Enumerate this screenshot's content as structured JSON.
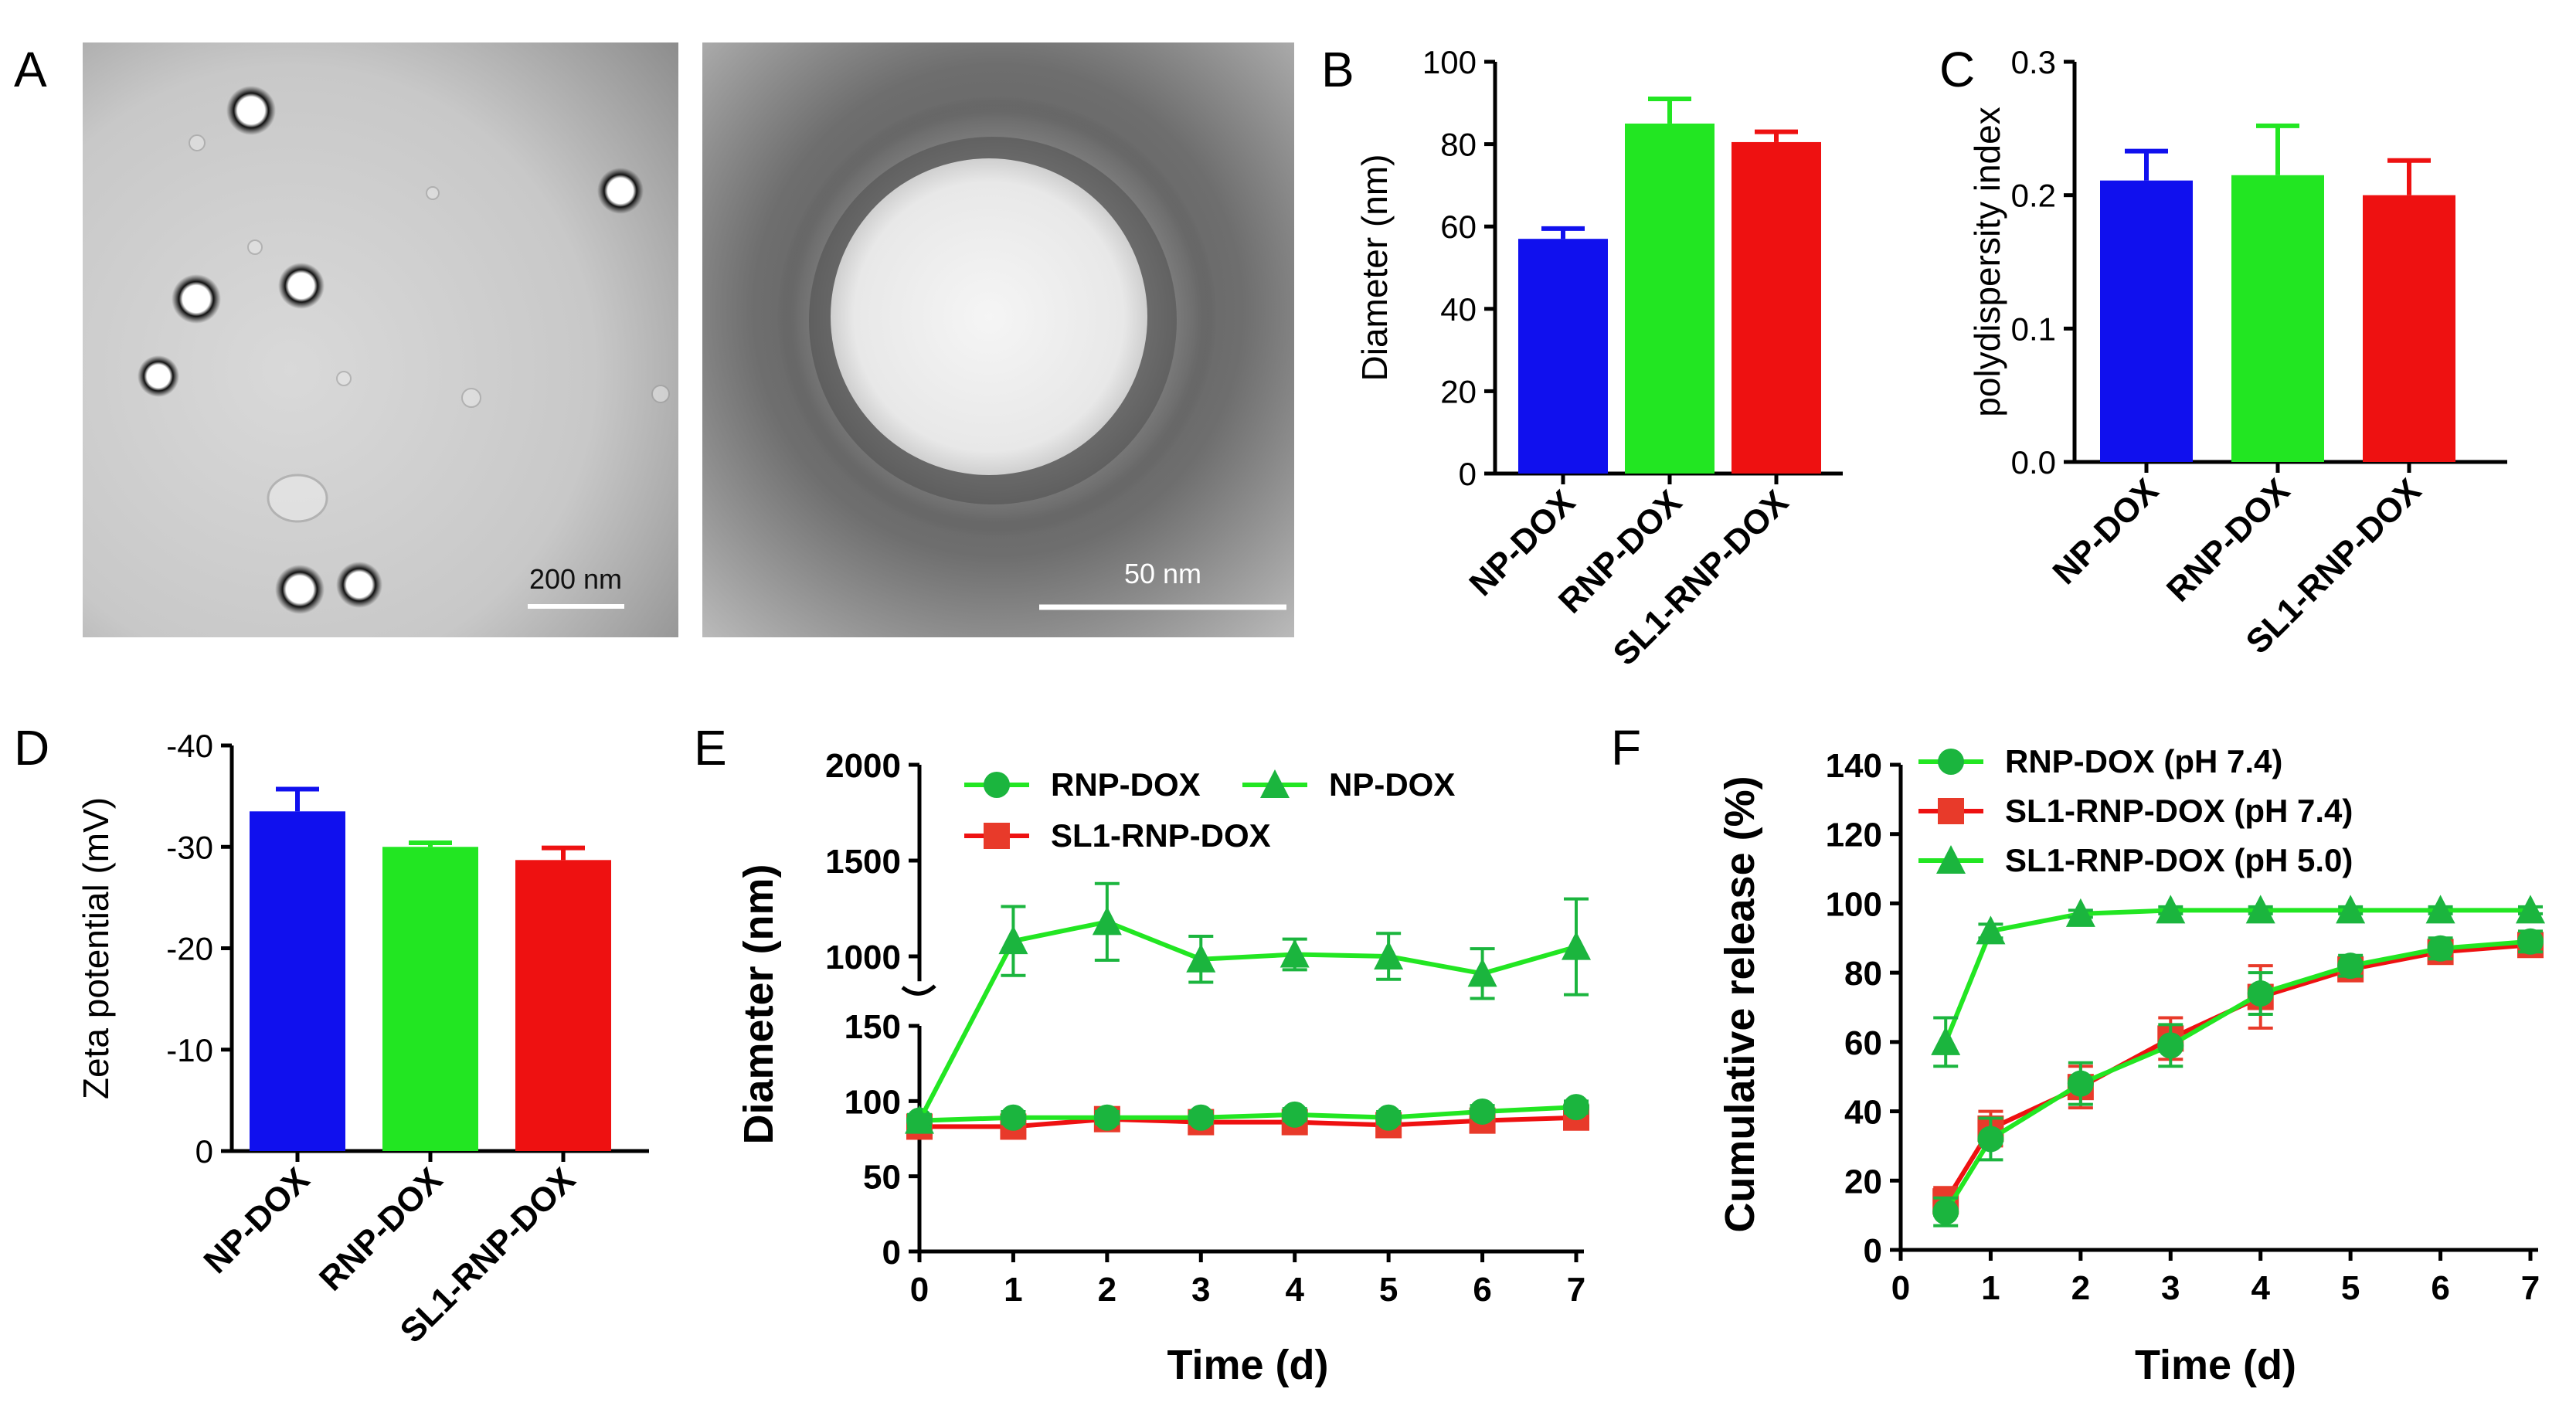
{
  "panel_labels": {
    "A": "A",
    "B": "B",
    "C": "C",
    "D": "D",
    "E": "E",
    "F": "F"
  },
  "tem_images": {
    "left_scale": "200 nm",
    "right_scale": "50 nm"
  },
  "colors": {
    "blue": "#1010ee",
    "green": "#22e622",
    "red": "#ee1111",
    "dark_green": "#1bb53e",
    "marker_red": "#e83a2a"
  },
  "chart_data": [
    {
      "id": "B",
      "type": "bar",
      "ylabel": "Diameter (nm)",
      "ylim": [
        0,
        100
      ],
      "yticks": [
        "0",
        "20",
        "40",
        "60",
        "80",
        "100"
      ],
      "categories": [
        "NP-DOX",
        "RNP-DOX",
        "SL1-RNP-DOX"
      ],
      "values": [
        57,
        85,
        80.5
      ],
      "errors": [
        2.5,
        6,
        2.5
      ],
      "colors": [
        "blue",
        "green",
        "red"
      ]
    },
    {
      "id": "C",
      "type": "bar",
      "ylabel": "polydispersity index",
      "ylim": [
        0,
        0.3
      ],
      "yticks": [
        "0.0",
        "0.1",
        "0.2",
        "0.3"
      ],
      "categories": [
        "NP-DOX",
        "RNP-DOX",
        "SL1-RNP-DOX"
      ],
      "values": [
        0.211,
        0.215,
        0.2
      ],
      "errors": [
        0.022,
        0.037,
        0.026
      ],
      "colors": [
        "blue",
        "green",
        "red"
      ]
    },
    {
      "id": "D",
      "type": "bar",
      "ylabel": "Zeta potential (mV)",
      "ylim": [
        0,
        -40
      ],
      "yticks": [
        "0",
        "-10",
        "-20",
        "-30",
        "-40"
      ],
      "categories": [
        "NP-DOX",
        "RNP-DOX",
        "SL1-RNP-DOX"
      ],
      "values": [
        -33.5,
        -30,
        -28.7
      ],
      "errors": [
        2.2,
        0.4,
        1.2
      ],
      "colors": [
        "blue",
        "green",
        "red"
      ]
    },
    {
      "id": "E",
      "type": "line",
      "xlabel": "Time (d)",
      "ylabel": "Diameter (nm)",
      "broken_axis": true,
      "ylim_lower": [
        0,
        150
      ],
      "yticks_lower": [
        "0",
        "50",
        "100",
        "150"
      ],
      "ylim_upper": [
        750,
        2000
      ],
      "yticks_upper": [
        "1000",
        "1500",
        "2000"
      ],
      "x": [
        0,
        1,
        2,
        3,
        4,
        5,
        6,
        7
      ],
      "xticks": [
        "0",
        "1",
        "2",
        "3",
        "4",
        "5",
        "6",
        "7"
      ],
      "series": [
        {
          "name": "RNP-DOX",
          "marker": "circle",
          "color": "green",
          "values": [
            87,
            89,
            89,
            89,
            91,
            89,
            93,
            96
          ],
          "errors": [
            4,
            4,
            4,
            4,
            4,
            4,
            4,
            4
          ]
        },
        {
          "name": "SL1-RNP-DOX",
          "marker": "square",
          "color": "red",
          "values": [
            83,
            83,
            88,
            86,
            86,
            84,
            87,
            89
          ],
          "errors": [
            5,
            5,
            5,
            5,
            5,
            5,
            5,
            5
          ]
        },
        {
          "name": "NP-DOX",
          "marker": "triangle",
          "color": "green",
          "values": [
            87,
            1080,
            1180,
            985,
            1010,
            1000,
            910,
            1050
          ],
          "errors": [
            4,
            180,
            200,
            120,
            80,
            120,
            130,
            250
          ]
        }
      ],
      "legend_order": [
        "RNP-DOX",
        "NP-DOX",
        "SL1-RNP-DOX"
      ]
    },
    {
      "id": "F",
      "type": "line",
      "xlabel": "Time (d)",
      "ylabel": "Cumulative release (%)",
      "ylim": [
        0,
        140
      ],
      "yticks": [
        "0",
        "20",
        "40",
        "60",
        "80",
        "100",
        "120",
        "140"
      ],
      "xlim": [
        0,
        7
      ],
      "xticks": [
        "0",
        "1",
        "2",
        "3",
        "4",
        "5",
        "6",
        "7"
      ],
      "x": [
        0.5,
        1,
        2,
        3,
        4,
        5,
        6,
        7
      ],
      "series": [
        {
          "name": "RNP-DOX (pH 7.4)",
          "marker": "circle",
          "color": "green",
          "values": [
            11,
            32,
            48,
            59,
            74,
            82,
            87,
            89
          ],
          "errors": [
            4,
            6,
            6,
            6,
            6,
            3,
            3,
            3
          ]
        },
        {
          "name": "SL1-RNP-DOX (pH 7.4)",
          "marker": "square",
          "color": "red",
          "values": [
            14,
            35,
            47,
            61,
            73,
            81,
            86,
            88
          ],
          "errors": [
            4,
            5,
            6,
            6,
            9,
            3,
            3,
            3
          ]
        },
        {
          "name": "SL1-RNP-DOX (pH 5.0)",
          "marker": "triangle",
          "color": "green",
          "values": [
            60,
            92,
            97,
            98,
            98,
            98,
            98,
            98
          ],
          "errors": [
            7,
            2,
            1,
            1,
            1,
            1,
            1,
            1
          ]
        }
      ]
    }
  ]
}
